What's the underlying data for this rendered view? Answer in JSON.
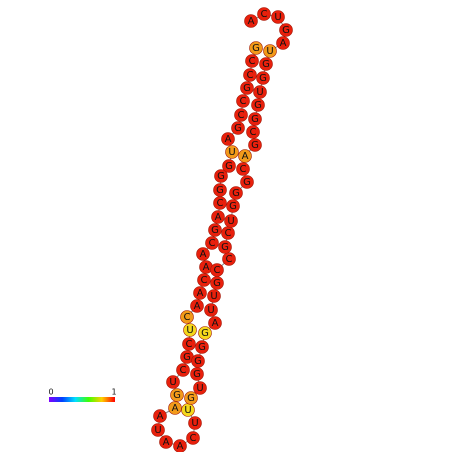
{
  "nodes": [
    {
      "label": "G",
      "color": "#f29a1a"
    },
    {
      "label": "C",
      "color": "#e8200c"
    },
    {
      "label": "C",
      "color": "#e8200c"
    },
    {
      "label": "G",
      "color": "#e8200c"
    },
    {
      "label": "C",
      "color": "#e8200c"
    },
    {
      "label": "C",
      "color": "#e8200c"
    },
    {
      "label": "G",
      "color": "#e8200c"
    },
    {
      "label": "A",
      "color": "#e8200c"
    },
    {
      "label": "U",
      "color": "#f29a1a"
    },
    {
      "label": "G",
      "color": "#e8200c"
    },
    {
      "label": "G",
      "color": "#e8200c"
    },
    {
      "label": "G",
      "color": "#e8200c"
    },
    {
      "label": "C",
      "color": "#e8200c"
    },
    {
      "label": "A",
      "color": "#e8200c"
    },
    {
      "label": "G",
      "color": "#e8200c"
    },
    {
      "label": "C",
      "color": "#e8200c"
    },
    {
      "label": "A",
      "color": "#e8200c"
    },
    {
      "label": "A",
      "color": "#e8200c"
    },
    {
      "label": "C",
      "color": "#e8200c"
    },
    {
      "label": "A",
      "color": "#e8200c"
    },
    {
      "label": "A",
      "color": "#e8200c"
    },
    {
      "label": "C",
      "color": "#f29a1a"
    },
    {
      "label": "U",
      "color": "#f4d81c"
    },
    {
      "label": "C",
      "color": "#e8200c"
    },
    {
      "label": "G",
      "color": "#e8200c"
    },
    {
      "label": "C",
      "color": "#e8200c"
    },
    {
      "label": "U",
      "color": "#e8200c"
    },
    {
      "label": "G",
      "color": "#f29a1a"
    },
    {
      "label": "A",
      "color": "#f29a1a"
    },
    {
      "label": "A",
      "color": "#e8200c"
    },
    {
      "label": "U",
      "color": "#e8200c"
    },
    {
      "label": "A",
      "color": "#e8200c"
    },
    {
      "label": "A",
      "color": "#e8200c"
    },
    {
      "label": "C",
      "color": "#e8200c"
    },
    {
      "label": "U",
      "color": "#e8200c"
    },
    {
      "label": "U",
      "color": "#f4d81c"
    },
    {
      "label": "G",
      "color": "#f29a1a"
    },
    {
      "label": "U",
      "color": "#e8200c"
    },
    {
      "label": "G",
      "color": "#e8200c"
    },
    {
      "label": "G",
      "color": "#e8200c"
    },
    {
      "label": "G",
      "color": "#e8200c"
    },
    {
      "label": "G",
      "color": "#f4d81c"
    },
    {
      "label": "A",
      "color": "#e8200c"
    },
    {
      "label": "U",
      "color": "#e8200c"
    },
    {
      "label": "U",
      "color": "#e8200c"
    },
    {
      "label": "G",
      "color": "#e8200c"
    },
    {
      "label": "C",
      "color": "#e8200c"
    },
    {
      "label": "C",
      "color": "#e8200c"
    },
    {
      "label": "G",
      "color": "#e8200c"
    },
    {
      "label": "C",
      "color": "#e8200c"
    },
    {
      "label": "U",
      "color": "#e8200c"
    },
    {
      "label": "G",
      "color": "#e8200c"
    },
    {
      "label": "G",
      "color": "#e8200c"
    },
    {
      "label": "G",
      "color": "#e8200c"
    },
    {
      "label": "C",
      "color": "#e8200c"
    },
    {
      "label": "A",
      "color": "#f29a1a"
    },
    {
      "label": "G",
      "color": "#e8200c"
    },
    {
      "label": "C",
      "color": "#e8200c"
    },
    {
      "label": "G",
      "color": "#e8200c"
    },
    {
      "label": "G",
      "color": "#e8200c"
    },
    {
      "label": "U",
      "color": "#e8200c"
    },
    {
      "label": "G",
      "color": "#e8200c"
    },
    {
      "label": "G",
      "color": "#e8200c"
    },
    {
      "label": "U",
      "color": "#f29a1a"
    },
    {
      "label": "A",
      "color": "#e8200c"
    },
    {
      "label": "G",
      "color": "#e8200c"
    },
    {
      "label": "U",
      "color": "#e8200c"
    },
    {
      "label": "C",
      "color": "#e8200c"
    },
    {
      "label": "A",
      "color": "#e8200c"
    }
  ],
  "colorbar": {
    "min_label": "0",
    "max_label": "1"
  }
}
